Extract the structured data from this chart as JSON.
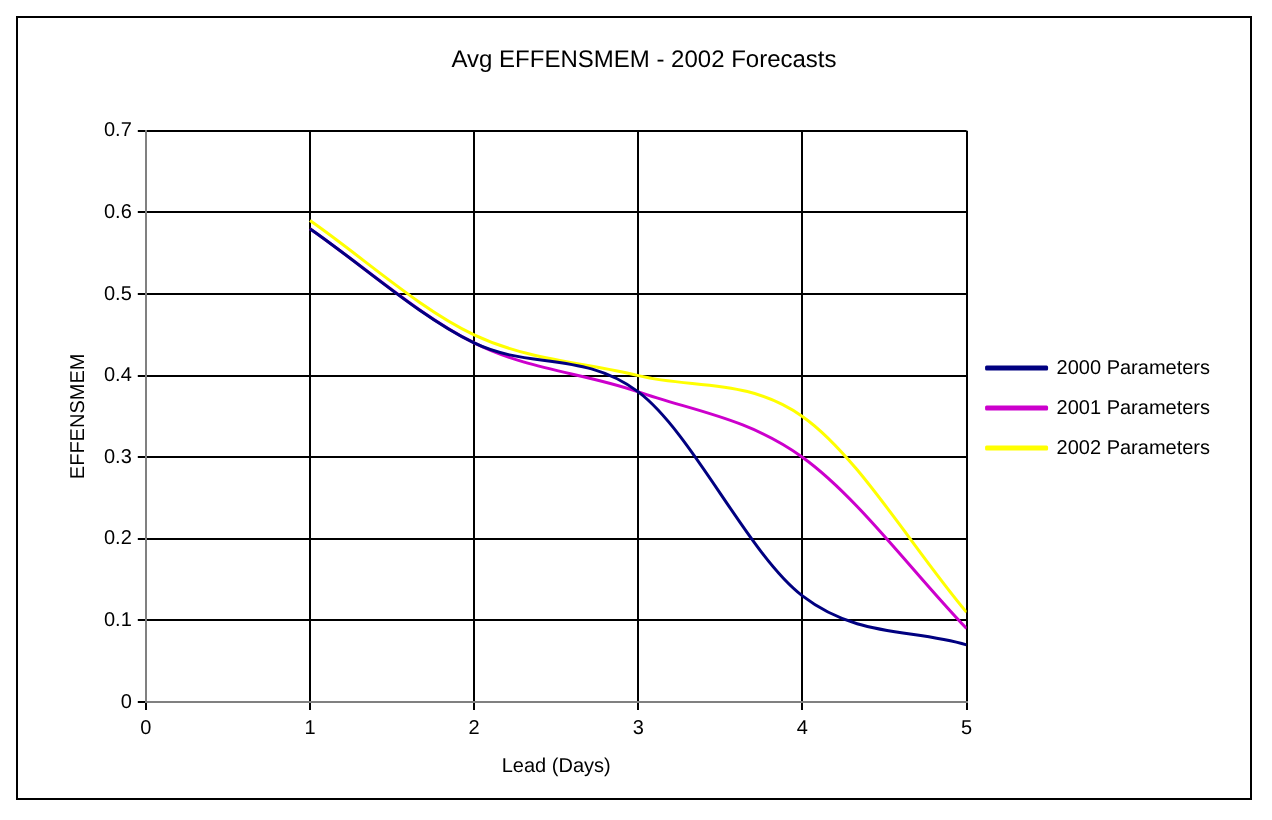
{
  "chart_data": {
    "type": "line",
    "title": "Avg EFFENSMEM - 2002 Forecasts",
    "xlabel": "Lead (Days)",
    "ylabel": "EFFENSMEM",
    "x": [
      1,
      2,
      3,
      4,
      5
    ],
    "series": [
      {
        "name": "2000 Parameters",
        "color": "#000080",
        "values": [
          0.58,
          0.44,
          0.38,
          0.13,
          0.07
        ]
      },
      {
        "name": "2001 Parameters",
        "color": "#cc00cc",
        "values": [
          0.58,
          0.44,
          0.38,
          0.3,
          0.09
        ]
      },
      {
        "name": "2002 Parameters",
        "color": "#ffff00",
        "values": [
          0.59,
          0.45,
          0.4,
          0.35,
          0.11
        ]
      }
    ],
    "xlim": [
      0,
      5
    ],
    "xticks": [
      0,
      1,
      2,
      3,
      4,
      5
    ],
    "ylim": [
      0,
      0.7
    ],
    "yticks": [
      0,
      0.1,
      0.2,
      0.3,
      0.4,
      0.5,
      0.6,
      0.7
    ],
    "grid": true,
    "legend": "right",
    "marker": "none",
    "line_style": "solid"
  }
}
